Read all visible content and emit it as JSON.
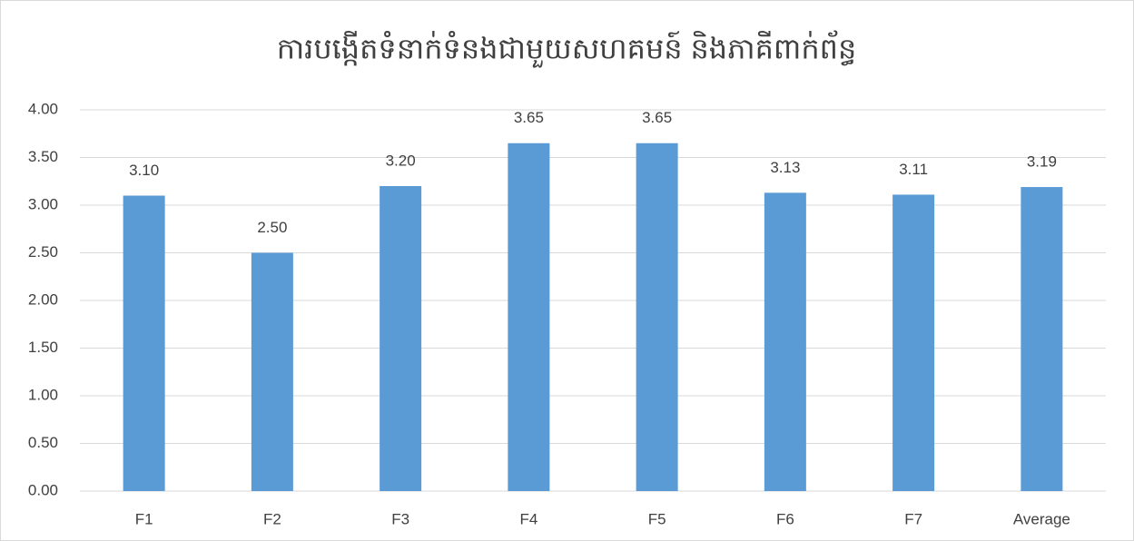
{
  "chart_data": {
    "type": "bar",
    "title": "ការបង្កើតទំនាក់ទំនងជាមួយសហគមន៍ និងភាគីពាក់ព័ន្ធ",
    "categories": [
      "F1",
      "F2",
      "F3",
      "F4",
      "F5",
      "F6",
      "F7",
      "Average"
    ],
    "values": [
      3.1,
      2.5,
      3.2,
      3.65,
      3.65,
      3.13,
      3.11,
      3.19
    ],
    "value_labels": [
      "3.10",
      "2.50",
      "3.20",
      "3.65",
      "3.65",
      "3.13",
      "3.11",
      "3.19"
    ],
    "color": "#5b9bd5",
    "ylim": [
      0,
      4
    ],
    "yticks": [
      {
        "value": 0,
        "label": "0.00"
      },
      {
        "value": 0.5,
        "label": "0.50"
      },
      {
        "value": 1,
        "label": "1.00"
      },
      {
        "value": 1.5,
        "label": "1.50"
      },
      {
        "value": 2,
        "label": "2.00"
      },
      {
        "value": 2.5,
        "label": "2.50"
      },
      {
        "value": 3,
        "label": "3.00"
      },
      {
        "value": 3.5,
        "label": "3.50"
      },
      {
        "value": 4,
        "label": "4.00"
      }
    ],
    "grid": true
  }
}
